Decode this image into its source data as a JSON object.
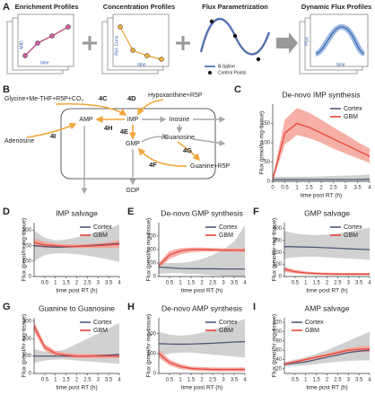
{
  "schematic": {
    "label": "A",
    "titles": [
      "Enrichment Profiles",
      "Concentration Profiles",
      "Flux Parametrization",
      "Dynamic Flux Profiles"
    ],
    "axis_labels": [
      "MID",
      "time",
      "Rel. Conc.",
      "time",
      "Flux",
      "time"
    ],
    "legend": [
      "B-Spline",
      "Control Points"
    ]
  },
  "diagram": {
    "label": "B",
    "nodes": [
      "Glycine+Me-THF+R5P+CO₂",
      "Hypoxanthine+R5P",
      "AMP",
      "IMP",
      "Inosine",
      "Adenosine",
      "GMP",
      "Guanosine",
      "Guanine+R5P",
      "GDP"
    ],
    "reactions": [
      "4C",
      "4D",
      "4H",
      "4I",
      "4E",
      "4G",
      "4F"
    ]
  },
  "chart_data": [
    {
      "type": "line",
      "label": "C",
      "title": "De-novo IMP synthesis",
      "xlabel": "time post RT (h)",
      "ylabel": "Flux (pmol/hr·mg-tissue)",
      "x": [
        0,
        0.5,
        1,
        1.5,
        2,
        2.5,
        3,
        3.5,
        4
      ],
      "xlim": [
        0,
        4
      ],
      "xticks": [
        0,
        0.5,
        1,
        1.5,
        2,
        2.5,
        3,
        3.5,
        4
      ],
      "ylim": [
        0,
        200
      ],
      "yticks": [
        0,
        50,
        100,
        150
      ],
      "legend": "upper right",
      "series": [
        {
          "name": "Cortex",
          "color": "#4f5a78",
          "band_color": "#c9c9c9",
          "values": [
            5,
            5,
            5,
            5,
            5,
            5,
            5,
            5,
            6
          ],
          "lower": [
            0,
            0,
            0,
            0,
            0,
            0,
            0,
            0,
            0
          ],
          "upper": [
            12,
            12,
            12,
            12,
            13,
            14,
            15,
            16,
            18
          ]
        },
        {
          "name": "GBM",
          "color": "#e8453c",
          "band_color": "#f3a197",
          "values": [
            5,
            125,
            150,
            140,
            125,
            110,
            95,
            80,
            65
          ],
          "lower": [
            0,
            95,
            120,
            112,
            100,
            85,
            72,
            60,
            48
          ],
          "upper": [
            10,
            160,
            190,
            178,
            160,
            140,
            122,
            102,
            85
          ]
        }
      ]
    },
    {
      "type": "line",
      "label": "D",
      "title": "IMP salvage",
      "xlabel": "time post RT (h)",
      "ylabel": "Flux (pmol/hr·mg-tissue)",
      "x": [
        0,
        0.5,
        1,
        1.5,
        2,
        2.5,
        3,
        3.5,
        4
      ],
      "xlim": [
        0,
        4
      ],
      "xticks": [
        0.5,
        1,
        1.5,
        2,
        2.5,
        3,
        3.5,
        4
      ],
      "ylim": [
        0,
        350
      ],
      "yticks": [
        0,
        100,
        200,
        300
      ],
      "legend": "upper right",
      "series": [
        {
          "name": "Cortex",
          "color": "#4f5a78",
          "band_color": "#c9c9c9",
          "values": [
            200,
            195,
            190,
            192,
            196,
            200,
            205,
            210,
            215
          ],
          "lower": [
            100,
            140,
            150,
            150,
            145,
            135,
            125,
            110,
            95
          ],
          "upper": [
            300,
            250,
            235,
            240,
            255,
            270,
            290,
            310,
            340
          ]
        },
        {
          "name": "GBM",
          "color": "#e8453c",
          "band_color": "#f3a197",
          "values": [
            220,
            205,
            200,
            195,
            195,
            198,
            200,
            205,
            210
          ],
          "lower": [
            195,
            185,
            185,
            185,
            185,
            185,
            185,
            185,
            185
          ],
          "upper": [
            245,
            225,
            215,
            210,
            210,
            212,
            218,
            225,
            235
          ]
        }
      ]
    },
    {
      "type": "line",
      "label": "E",
      "title": "De-novo GMP synthesis",
      "xlabel": "time post RT (h)",
      "ylabel": "Flux (pmol/hr·mg-tissue)",
      "x": [
        0,
        0.5,
        1,
        1.5,
        2,
        2.5,
        3,
        3.5,
        4
      ],
      "xlim": [
        0,
        4
      ],
      "xticks": [
        0.5,
        1,
        1.5,
        2,
        2.5,
        3,
        3.5,
        4
      ],
      "ylim": [
        0,
        400
      ],
      "yticks": [
        0,
        100,
        200,
        300
      ],
      "legend": "upper right",
      "series": [
        {
          "name": "Cortex",
          "color": "#4f5a78",
          "band_color": "#c9c9c9",
          "values": [
            70,
            65,
            60,
            58,
            57,
            57,
            56,
            56,
            56
          ],
          "lower": [
            20,
            25,
            25,
            20,
            15,
            10,
            5,
            0,
            0
          ],
          "upper": [
            100,
            100,
            100,
            110,
            130,
            160,
            200,
            260,
            380
          ]
        },
        {
          "name": "GBM",
          "color": "#e8453c",
          "band_color": "#f3a197",
          "values": [
            80,
            160,
            190,
            200,
            200,
            198,
            196,
            195,
            195
          ],
          "lower": [
            60,
            130,
            165,
            180,
            185,
            185,
            185,
            183,
            180
          ],
          "upper": [
            100,
            190,
            210,
            215,
            215,
            212,
            210,
            210,
            210
          ]
        }
      ]
    },
    {
      "type": "line",
      "label": "F",
      "title": "GMP salvage",
      "xlabel": "time post RT (h)",
      "ylabel": "Flux (pmol/hr·mg-tissue)",
      "x": [
        0,
        0.5,
        1,
        1.5,
        2,
        2.5,
        3,
        3.5,
        4
      ],
      "xlim": [
        0,
        4
      ],
      "xticks": [
        0.5,
        1,
        1.5,
        2,
        2.5,
        3,
        3.5,
        4
      ],
      "ylim": [
        0,
        450
      ],
      "yticks": [
        0,
        100,
        200,
        300,
        400
      ],
      "legend": "upper right",
      "series": [
        {
          "name": "Cortex",
          "color": "#4f5a78",
          "band_color": "#c9c9c9",
          "values": [
            250,
            248,
            246,
            244,
            240,
            236,
            232,
            228,
            225
          ],
          "lower": [
            150,
            160,
            165,
            165,
            160,
            155,
            150,
            145,
            140
          ],
          "upper": [
            380,
            360,
            350,
            345,
            350,
            360,
            375,
            390,
            410
          ]
        },
        {
          "name": "GBM",
          "color": "#e8453c",
          "band_color": "#f3a197",
          "values": [
            60,
            40,
            30,
            25,
            22,
            20,
            20,
            20,
            20
          ],
          "lower": [
            40,
            25,
            18,
            15,
            12,
            10,
            10,
            10,
            10
          ],
          "upper": [
            80,
            55,
            42,
            35,
            32,
            30,
            30,
            30,
            30
          ]
        }
      ]
    },
    {
      "type": "line",
      "label": "G",
      "title": "Guanine to Guanosine",
      "xlabel": "time post RT (h)",
      "ylabel": "Flux (pmol/hr·mg-tissue)",
      "x": [
        0,
        0.5,
        1,
        1.5,
        2,
        2.5,
        3,
        3.5,
        4
      ],
      "xlim": [
        0,
        4
      ],
      "xticks": [
        0.5,
        1,
        1.5,
        2,
        2.5,
        3,
        3.5,
        4
      ],
      "ylim": [
        0,
        320
      ],
      "yticks": [
        0,
        100,
        200,
        300
      ],
      "legend": "upper right",
      "series": [
        {
          "name": "Cortex",
          "color": "#4f5a78",
          "band_color": "#c9c9c9",
          "values": [
            100,
            100,
            100,
            100,
            100,
            100,
            102,
            105,
            110
          ],
          "lower": [
            60,
            75,
            80,
            80,
            75,
            70,
            65,
            60,
            55
          ],
          "upper": [
            140,
            125,
            125,
            140,
            170,
            200,
            230,
            260,
            290
          ]
        },
        {
          "name": "GBM",
          "color": "#e8453c",
          "band_color": "#f3a197",
          "values": [
            270,
            150,
            115,
            105,
            100,
            100,
            100,
            100,
            100
          ],
          "lower": [
            240,
            130,
            100,
            92,
            88,
            88,
            88,
            88,
            88
          ],
          "upper": [
            300,
            170,
            130,
            118,
            112,
            112,
            112,
            112,
            112
          ]
        }
      ]
    },
    {
      "type": "line",
      "label": "H",
      "title": "De-novo AMP synthesis",
      "xlabel": "time post RT (h)",
      "ylabel": "Flux (pmol/hr·mg-tissue)",
      "x": [
        0,
        0.5,
        1,
        1.5,
        2,
        2.5,
        3,
        3.5,
        4
      ],
      "xlim": [
        0,
        4
      ],
      "xticks": [
        0.5,
        1,
        1.5,
        2,
        2.5,
        3,
        3.5,
        4
      ],
      "ylim": [
        0,
        280
      ],
      "yticks": [
        0,
        100,
        200
      ],
      "legend": "upper right",
      "series": [
        {
          "name": "Cortex",
          "color": "#4f5a78",
          "band_color": "#c9c9c9",
          "values": [
            150,
            148,
            147,
            148,
            150,
            152,
            155,
            158,
            160
          ],
          "lower": [
            90,
            100,
            105,
            105,
            100,
            95,
            90,
            85,
            80
          ],
          "upper": [
            210,
            195,
            190,
            195,
            205,
            220,
            235,
            255,
            275
          ]
        },
        {
          "name": "GBM",
          "color": "#e8453c",
          "band_color": "#f3a197",
          "values": [
            100,
            55,
            35,
            25,
            22,
            20,
            20,
            20,
            20
          ],
          "lower": [
            80,
            40,
            22,
            15,
            12,
            10,
            10,
            10,
            10
          ],
          "upper": [
            120,
            70,
            48,
            35,
            32,
            30,
            30,
            30,
            30
          ]
        }
      ]
    },
    {
      "type": "line",
      "label": "I",
      "title": "AMP salvage",
      "xlabel": "time post RT (h)",
      "ylabel": "Flux (pmol/hr·mg-tissue)",
      "x": [
        0,
        0.5,
        1,
        1.5,
        2,
        2.5,
        3,
        3.5,
        4
      ],
      "xlim": [
        0,
        4
      ],
      "xticks": [
        0.5,
        1,
        1.5,
        2,
        2.5,
        3,
        3.5,
        4
      ],
      "ylim": [
        10,
        130
      ],
      "yticks": [
        20,
        40,
        60,
        80,
        100,
        120
      ],
      "legend": "upper left",
      "series": [
        {
          "name": "Cortex",
          "color": "#4f5a78",
          "band_color": "#c9c9c9",
          "values": [
            30,
            32,
            35,
            40,
            45,
            50,
            55,
            58,
            60
          ],
          "lower": [
            25,
            26,
            28,
            30,
            33,
            35,
            37,
            38,
            38
          ],
          "upper": [
            35,
            40,
            45,
            52,
            60,
            70,
            80,
            90,
            100
          ]
        },
        {
          "name": "GBM",
          "color": "#e8453c",
          "band_color": "#f3a197",
          "values": [
            30,
            35,
            40,
            45,
            50,
            55,
            60,
            62,
            63
          ],
          "lower": [
            27,
            32,
            37,
            42,
            47,
            51,
            55,
            56,
            56
          ],
          "upper": [
            33,
            38,
            43,
            48,
            53,
            59,
            65,
            68,
            70
          ]
        }
      ]
    }
  ]
}
